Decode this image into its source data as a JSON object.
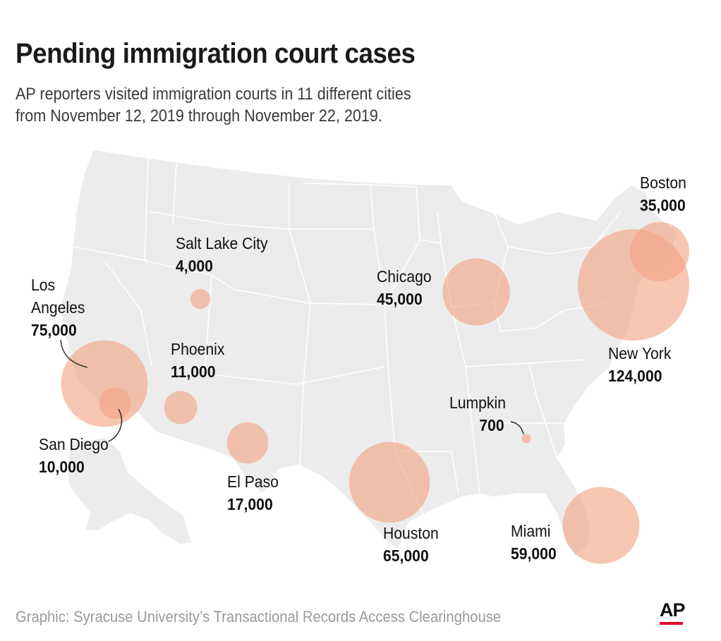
{
  "header": {
    "title": "Pending immigration court cases",
    "subtitle_lines": [
      "AP reporters visited immigration courts in 11 different cities",
      "from November 12, 2019 through November 22, 2019."
    ]
  },
  "footer": {
    "credit": "Graphic: Syracuse University’s Transactional Records Access Clearinghouse",
    "logo_text": "AP"
  },
  "colors": {
    "land": "#ececec",
    "state_border": "#ffffff",
    "bubble_fill": "#f2a383",
    "leader_line": "#222222",
    "logo_accent": "#e4002b"
  },
  "chart_data": {
    "type": "bubble-map",
    "measure": "Pending immigration court cases",
    "cities": [
      {
        "name": "Boston",
        "value": 35000,
        "display": "35,000"
      },
      {
        "name": "Salt Lake City",
        "value": 4000,
        "display": "4,000"
      },
      {
        "name": "Chicago",
        "value": 45000,
        "display": "45,000"
      },
      {
        "name": "Los Angeles",
        "value": 75000,
        "display": "75,000",
        "name_lines": [
          "Los",
          "Angeles"
        ]
      },
      {
        "name": "Phoenix",
        "value": 11000,
        "display": "11,000"
      },
      {
        "name": "New York",
        "value": 124000,
        "display": "124,000"
      },
      {
        "name": "Lumpkin",
        "value": 700,
        "display": "700"
      },
      {
        "name": "San Diego",
        "value": 10000,
        "display": "10,000"
      },
      {
        "name": "El Paso",
        "value": 17000,
        "display": "17,000"
      },
      {
        "name": "Houston",
        "value": 65000,
        "display": "65,000"
      },
      {
        "name": "Miami",
        "value": 59000,
        "display": "59,000"
      }
    ]
  }
}
